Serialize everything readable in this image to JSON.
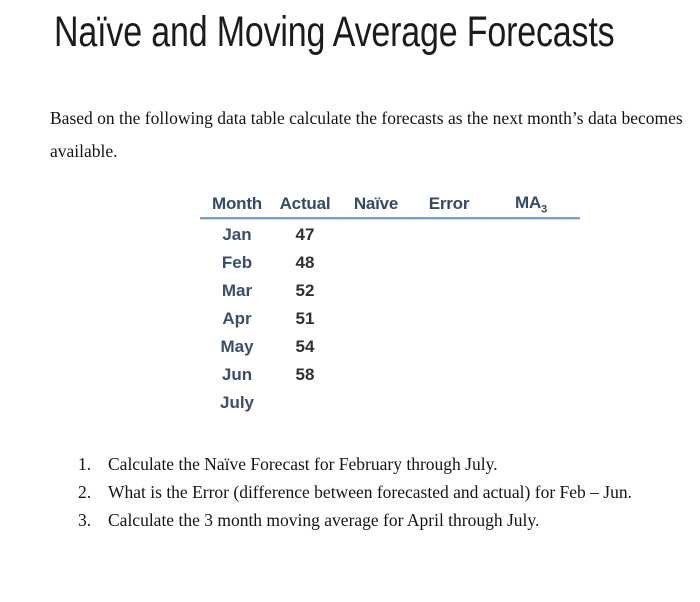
{
  "title": "Naïve and Moving Average Forecasts",
  "intro": "Based on the following data table calculate the forecasts as the next month’s data becomes available.",
  "table": {
    "columns": [
      {
        "label": "Month"
      },
      {
        "label": "Actual"
      },
      {
        "label": "Naïve"
      },
      {
        "label": "Error"
      },
      {
        "label": "MA",
        "subscript": "3"
      }
    ],
    "rows": [
      {
        "month": "Jan",
        "actual": "47"
      },
      {
        "month": "Feb",
        "actual": "48"
      },
      {
        "month": "Mar",
        "actual": "52"
      },
      {
        "month": "Apr",
        "actual": "51"
      },
      {
        "month": "May",
        "actual": "54"
      },
      {
        "month": "Jun",
        "actual": "58"
      },
      {
        "month": "July",
        "actual": ""
      }
    ]
  },
  "tasks": [
    {
      "number": "1.",
      "text": "Calculate the Naïve Forecast for February through July."
    },
    {
      "number": "2.",
      "text": "What is the Error (difference between forecasted and actual) for Feb – Jun."
    },
    {
      "number": "3.",
      "text": "Calculate the 3 month moving average for April through July."
    }
  ],
  "colors": {
    "title_text": "#1b1b1b",
    "body_text": "#141414",
    "header_text": "#344a66",
    "month_text": "#3c4e6b",
    "value_text": "#303138",
    "header_rule": "#7e9cc5",
    "background": "#ffffff"
  }
}
